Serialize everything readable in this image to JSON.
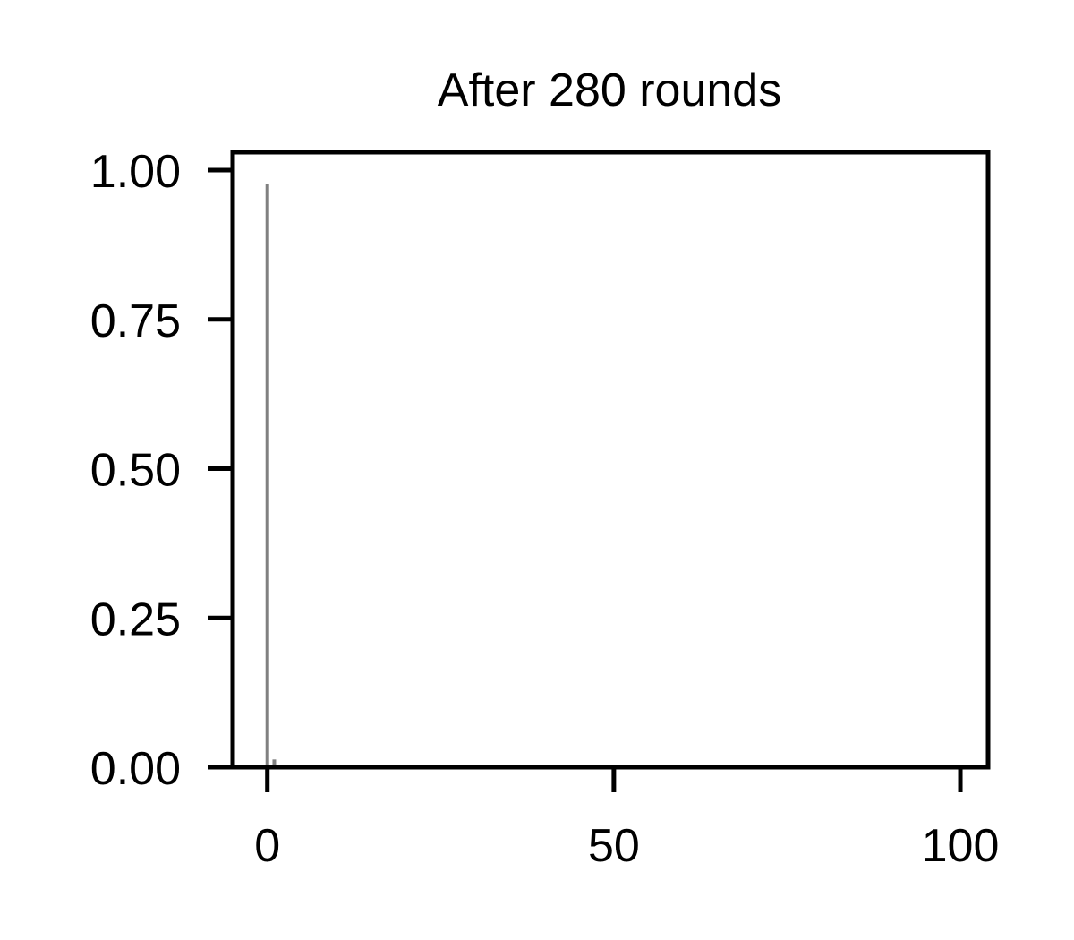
{
  "chart_data": {
    "type": "bar",
    "title": "After 280 rounds",
    "xlabel": "",
    "ylabel": "",
    "xlim": [
      -5,
      104
    ],
    "ylim": [
      0,
      1.03
    ],
    "x_ticks": [
      0,
      50,
      100
    ],
    "x_tick_labels": [
      "0",
      "50",
      "100"
    ],
    "y_ticks": [
      0,
      0.25,
      0.5,
      0.75,
      1.0
    ],
    "y_tick_labels": [
      "0.00",
      "0.25",
      "0.50",
      "0.75",
      "1.00"
    ],
    "bar_color": "#808080",
    "bars": [
      {
        "x": 0,
        "value": 0.977
      },
      {
        "x": 1,
        "value": 0.013
      }
    ],
    "grid": false,
    "legend": "none"
  }
}
